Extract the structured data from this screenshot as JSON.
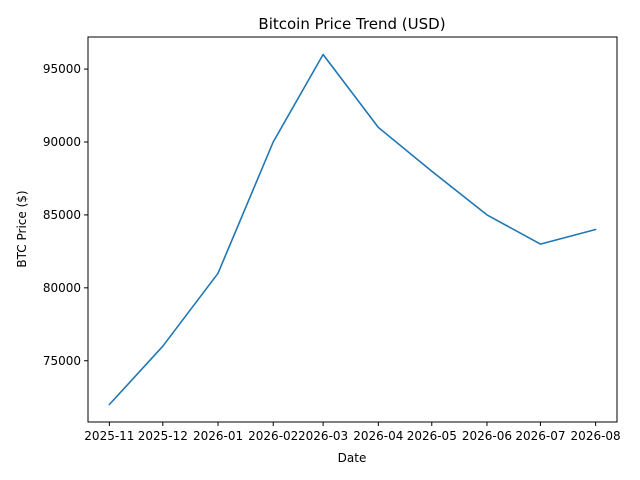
{
  "chart_data": {
    "type": "line",
    "title": "Bitcoin Price Trend (USD)",
    "xlabel": "Date",
    "ylabel": "BTC Price ($)",
    "x": [
      "2025-11",
      "2025-12",
      "2026-01",
      "2026-02",
      "2026-03",
      "2026-04",
      "2026-05",
      "2026-06",
      "2026-07",
      "2026-08"
    ],
    "series": [
      {
        "x": [
          "2025-11-01",
          "2025-12-01",
          "2026-01-01",
          "2026-02-01",
          "2026-03-01",
          "2026-04-01",
          "2026-05-01",
          "2026-06-01",
          "2026-07-01",
          "2026-08-01"
        ],
        "values": [
          72000,
          76000,
          81000,
          90000,
          96000,
          91000,
          88000,
          85000,
          83000,
          84000
        ],
        "color": "#1f77b4"
      }
    ],
    "xlim": [
      "2025-10-20",
      "2026-08-13"
    ],
    "ylim": [
      70800,
      97200
    ],
    "yticks": [
      75000,
      80000,
      85000,
      90000,
      95000
    ],
    "grid": false,
    "legend": "none"
  }
}
